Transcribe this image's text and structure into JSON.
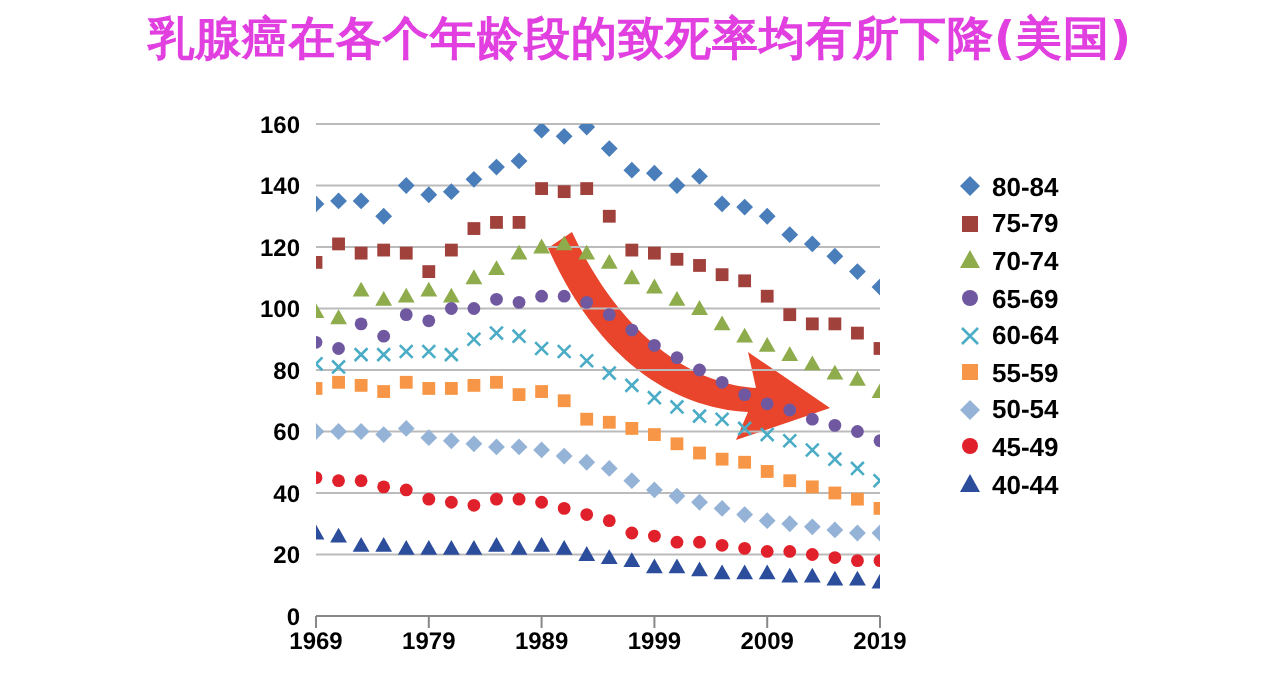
{
  "chart_data": {
    "type": "scatter",
    "title": "乳腺癌在各个年龄段的致死率均有所下降(美国)",
    "x": [
      1969,
      1971,
      1973,
      1975,
      1977,
      1979,
      1981,
      1983,
      1985,
      1987,
      1989,
      1991,
      1993,
      1995,
      1997,
      1999,
      2001,
      2003,
      2005,
      2007,
      2009,
      2011,
      2013,
      2015,
      2017,
      2019
    ],
    "xlim": [
      1969,
      2019
    ],
    "xticks": [
      1969,
      1979,
      1989,
      1999,
      2009,
      2019
    ],
    "ylim": [
      0,
      160
    ],
    "yticks": [
      0,
      20,
      40,
      60,
      80,
      100,
      120,
      140,
      160
    ],
    "grid": "y",
    "legend": "right",
    "series": [
      {
        "name": "80-84",
        "color": "#4a7ebb",
        "marker": "diamond",
        "values": [
          134,
          135,
          135,
          130,
          140,
          137,
          138,
          142,
          146,
          148,
          158,
          156,
          159,
          152,
          145,
          144,
          140,
          143,
          134,
          133,
          130,
          124,
          121,
          117,
          112,
          107
        ]
      },
      {
        "name": "75-79",
        "color": "#a0413c",
        "marker": "square",
        "values": [
          115,
          121,
          118,
          119,
          118,
          112,
          119,
          126,
          128,
          128,
          139,
          138,
          139,
          130,
          119,
          118,
          116,
          114,
          111,
          109,
          104,
          98,
          95,
          95,
          92,
          87
        ]
      },
      {
        "name": "70-74",
        "color": "#8eac4c",
        "marker": "triangle",
        "values": [
          99,
          97,
          106,
          103,
          104,
          106,
          104,
          110,
          113,
          118,
          120,
          121,
          118,
          115,
          110,
          107,
          103,
          100,
          95,
          91,
          88,
          85,
          82,
          79,
          77,
          73
        ]
      },
      {
        "name": "65-69",
        "color": "#6f58a0",
        "marker": "circle",
        "values": [
          89,
          87,
          95,
          91,
          98,
          96,
          100,
          100,
          103,
          102,
          104,
          104,
          102,
          98,
          93,
          88,
          84,
          80,
          76,
          72,
          69,
          67,
          64,
          62,
          60,
          57
        ]
      },
      {
        "name": "60-64",
        "color": "#4bacc6",
        "marker": "cross",
        "values": [
          82,
          81,
          85,
          85,
          86,
          86,
          85,
          90,
          92,
          91,
          87,
          86,
          83,
          79,
          75,
          71,
          68,
          65,
          64,
          61,
          59,
          57,
          54,
          51,
          48,
          44
        ]
      },
      {
        "name": "55-59",
        "color": "#f79646",
        "marker": "square",
        "values": [
          74,
          76,
          75,
          73,
          76,
          74,
          74,
          75,
          76,
          72,
          73,
          70,
          64,
          63,
          61,
          59,
          56,
          53,
          51,
          50,
          47,
          44,
          42,
          40,
          38,
          35
        ]
      },
      {
        "name": "50-54",
        "color": "#95b3d7",
        "marker": "diamond",
        "values": [
          60,
          60,
          60,
          59,
          61,
          58,
          57,
          56,
          55,
          55,
          54,
          52,
          50,
          48,
          44,
          41,
          39,
          37,
          35,
          33,
          31,
          30,
          29,
          28,
          27,
          27
        ]
      },
      {
        "name": "45-49",
        "color": "#e0202a",
        "marker": "circle",
        "values": [
          45,
          44,
          44,
          42,
          41,
          38,
          37,
          36,
          38,
          38,
          37,
          35,
          33,
          31,
          27,
          26,
          24,
          24,
          23,
          22,
          21,
          21,
          20,
          19,
          18,
          18
        ]
      },
      {
        "name": "40-44",
        "color": "#2b4d9c",
        "marker": "triangle",
        "values": [
          27,
          26,
          23,
          23,
          22,
          22,
          22,
          22,
          23,
          22,
          23,
          22,
          20,
          19,
          18,
          16,
          16,
          15,
          14,
          14,
          14,
          13,
          13,
          12,
          12,
          11
        ]
      }
    ]
  }
}
